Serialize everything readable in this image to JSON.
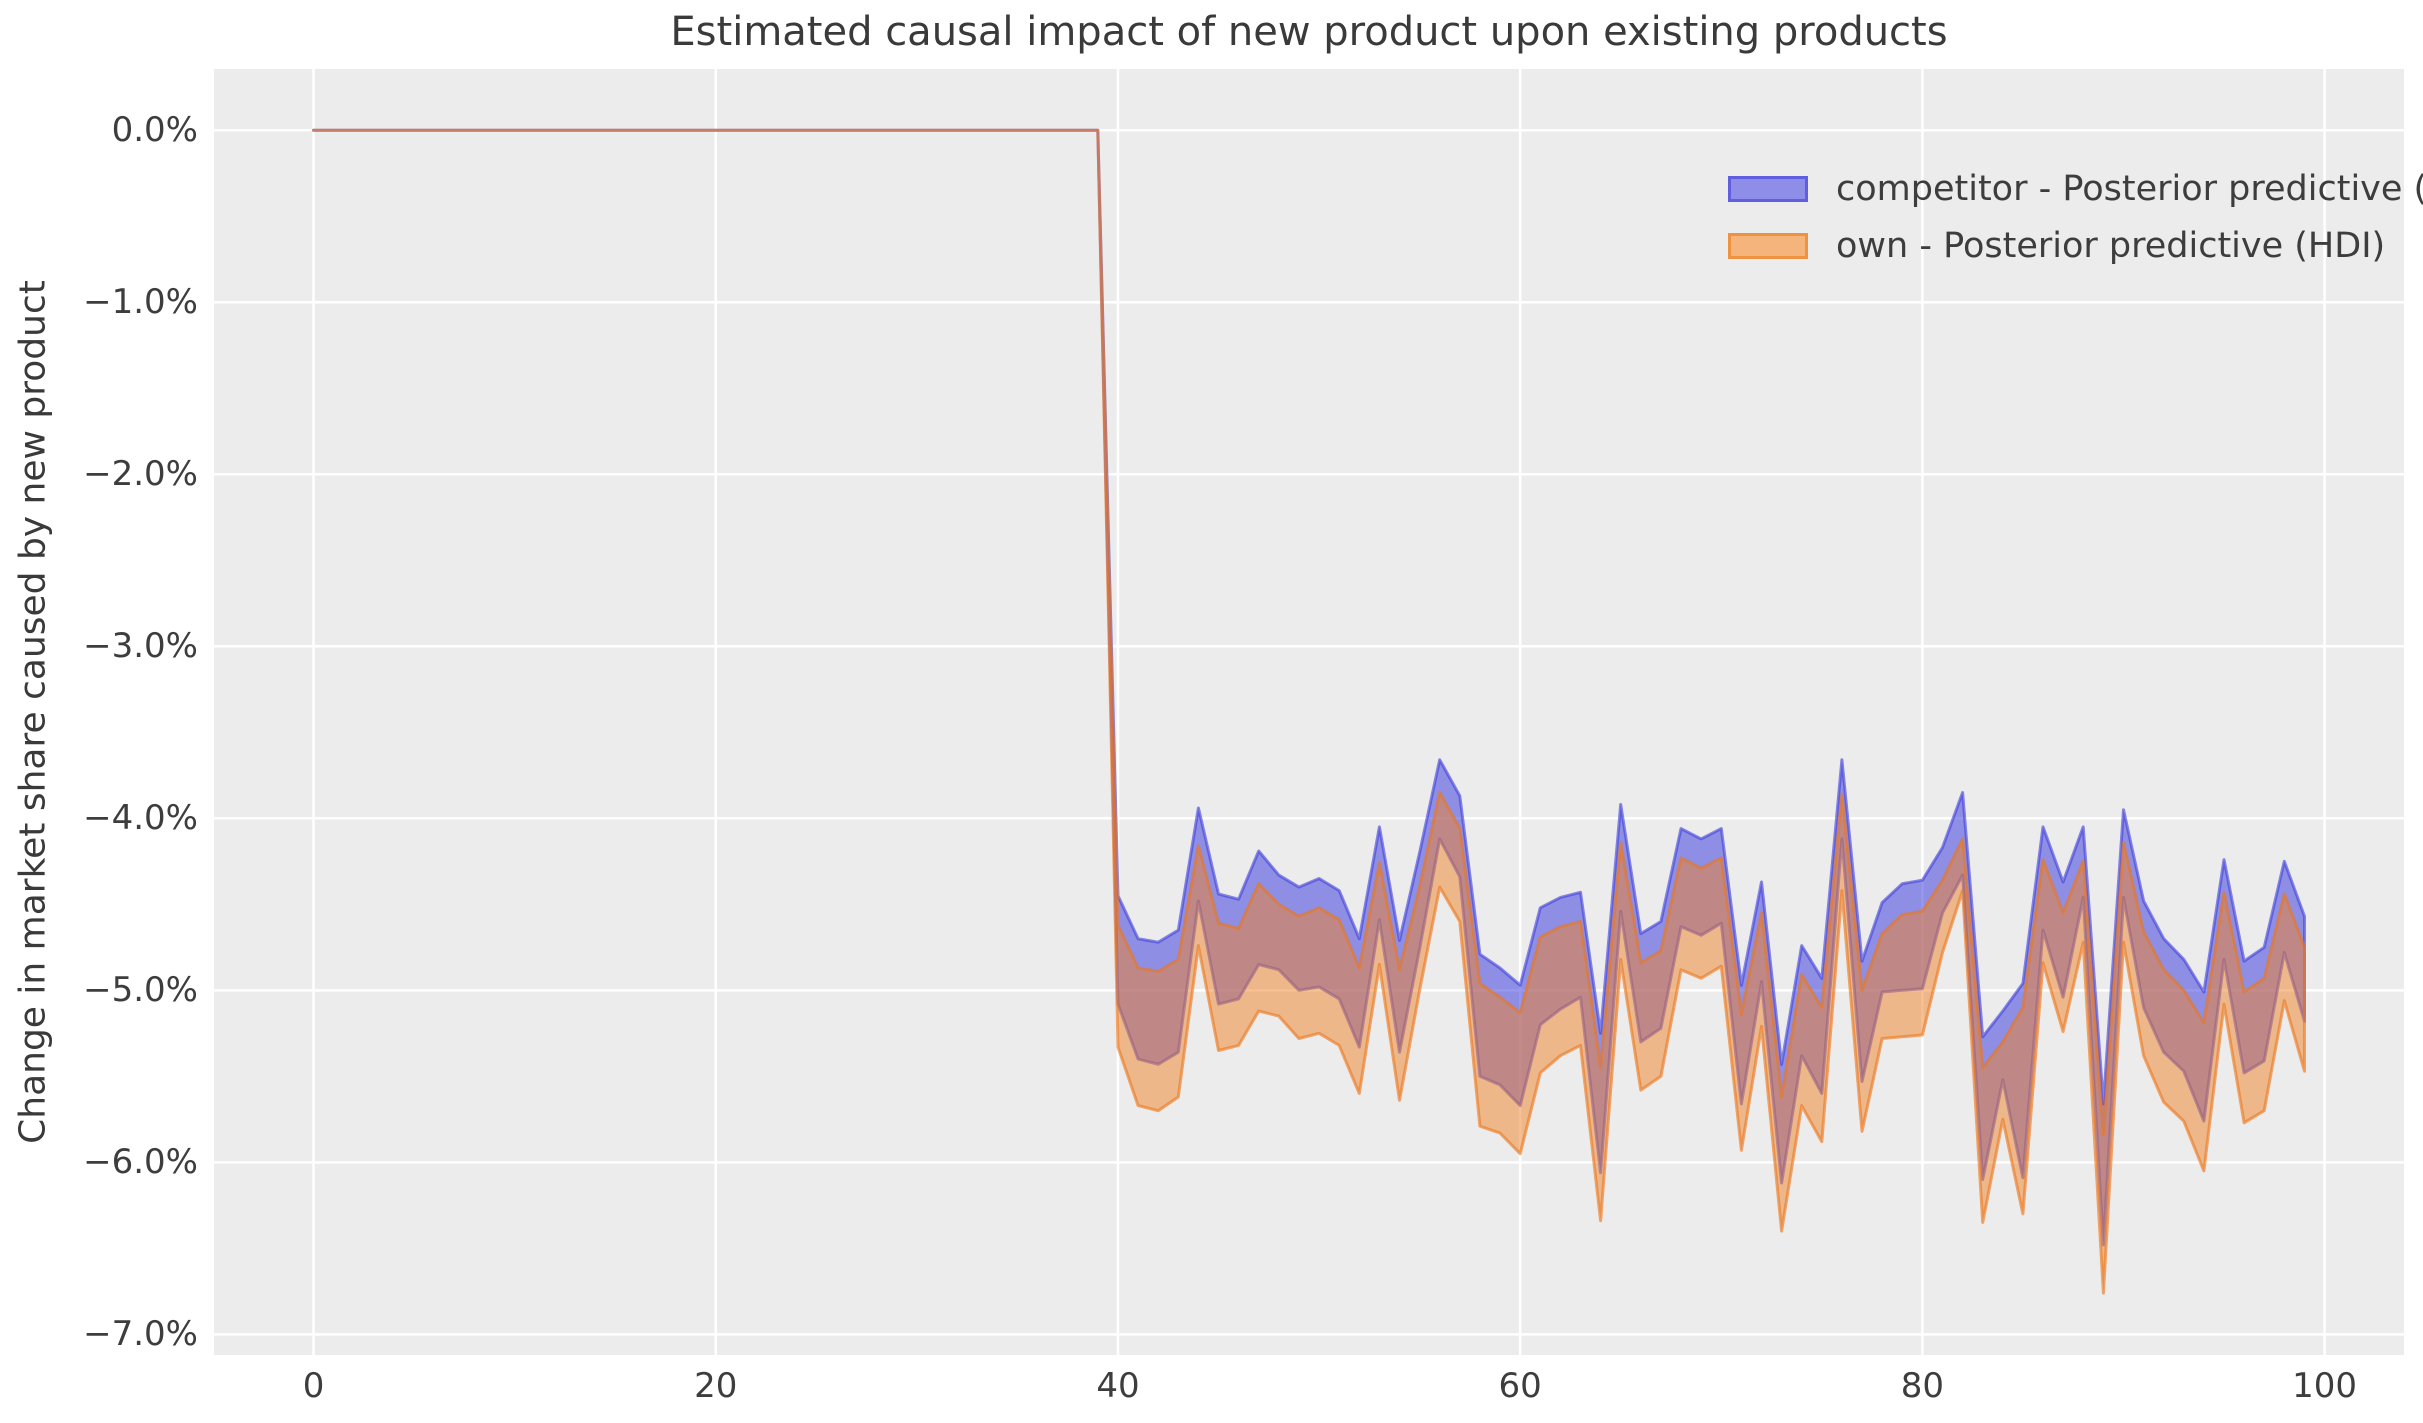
{
  "figure": {
    "title": "Estimated causal impact of new product upon existing products"
  },
  "axes": {
    "y_label": "Change in market share caused by new product",
    "x_ticks": [
      {
        "v": 0,
        "label": "0"
      },
      {
        "v": 20,
        "label": "20"
      },
      {
        "v": 40,
        "label": "40"
      },
      {
        "v": 60,
        "label": "60"
      },
      {
        "v": 80,
        "label": "80"
      },
      {
        "v": 100,
        "label": "100"
      }
    ],
    "y_ticks": [
      {
        "v": 0,
        "label": "0.0%"
      },
      {
        "v": -1,
        "label": "−1.0%"
      },
      {
        "v": -2,
        "label": "−2.0%"
      },
      {
        "v": -3,
        "label": "−3.0%"
      },
      {
        "v": -4,
        "label": "−4.0%"
      },
      {
        "v": -5,
        "label": "−5.0%"
      },
      {
        "v": -6,
        "label": "−6.0%"
      },
      {
        "v": -7,
        "label": "−7.0%"
      }
    ]
  },
  "legend": {
    "items": [
      {
        "label": "competitor - Posterior predictive (HDI)",
        "fill": "#8e8ee9",
        "border": "#5f5fe0"
      },
      {
        "label": "own - Posterior predictive (HDI)",
        "fill": "#f4b47b",
        "border": "#ee9140"
      }
    ]
  },
  "colors": {
    "page_bg": "#ffffff",
    "plot_bg": "#ececec",
    "grid": "#ffffff",
    "title_text": "#3a3a3a",
    "tick_text": "#3d3d3d",
    "pre_period_line_composite": "#c27f76",
    "overlap_composite": "#bc8584"
  },
  "chart_data": {
    "type": "area",
    "title": "Estimated causal impact of new product upon existing products",
    "xlabel": "",
    "ylabel": "Change in market share caused by new product",
    "xlim": [
      -4.95,
      103.95
    ],
    "ylim": [
      -7.12,
      0.356
    ],
    "x_tick_values": [
      0,
      20,
      40,
      60,
      80,
      100
    ],
    "y_tick_values": [
      0,
      -1,
      -2,
      -3,
      -4,
      -5,
      -6,
      -7
    ],
    "grid": true,
    "legend_position": "upper right",
    "units": "percent",
    "pre_period": {
      "x_start": 0,
      "x_end": 39,
      "value": 0
    },
    "x_post": [
      40,
      41,
      42,
      43,
      44,
      45,
      46,
      47,
      48,
      49,
      50,
      51,
      52,
      53,
      54,
      55,
      56,
      57,
      58,
      59,
      60,
      61,
      62,
      63,
      64,
      65,
      66,
      67,
      68,
      69,
      70,
      71,
      72,
      73,
      74,
      75,
      76,
      77,
      78,
      79,
      80,
      81,
      82,
      83,
      84,
      85,
      86,
      87,
      88,
      89,
      90,
      91,
      92,
      93,
      94,
      95,
      96,
      97,
      98,
      99
    ],
    "series": [
      {
        "name": "competitor - Posterior predictive (HDI)",
        "band": "HDI",
        "fill": "rgba(47,47,221,0.50)",
        "stroke": "rgba(64,64,220,0.62)",
        "hi": [
          -4.45,
          -4.7,
          -4.72,
          -4.65,
          -3.94,
          -4.44,
          -4.47,
          -4.19,
          -4.33,
          -4.4,
          -4.35,
          -4.42,
          -4.7,
          -4.05,
          -4.71,
          -4.2,
          -3.66,
          -3.87,
          -4.79,
          -4.87,
          -4.97,
          -4.52,
          -4.46,
          -4.43,
          -5.25,
          -3.92,
          -4.67,
          -4.6,
          -4.06,
          -4.12,
          -4.06,
          -4.97,
          -4.37,
          -5.43,
          -4.74,
          -4.93,
          -3.66,
          -4.83,
          -4.49,
          -4.38,
          -4.36,
          -4.17,
          -3.85,
          -5.27,
          -5.12,
          -4.96,
          -4.05,
          -4.37,
          -4.05,
          -5.66,
          -3.95,
          -4.48,
          -4.7,
          -4.82,
          -5.01,
          -4.24,
          -4.83,
          -4.75,
          -4.25,
          -4.57
        ],
        "lo": [
          -5.08,
          -5.4,
          -5.43,
          -5.36,
          -4.48,
          -5.08,
          -5.05,
          -4.85,
          -4.88,
          -5.0,
          -4.98,
          -5.05,
          -5.33,
          -4.59,
          -5.36,
          -4.76,
          -4.12,
          -4.34,
          -5.5,
          -5.55,
          -5.67,
          -5.2,
          -5.11,
          -5.04,
          -6.06,
          -4.54,
          -5.3,
          -5.22,
          -4.63,
          -4.68,
          -4.61,
          -5.66,
          -4.95,
          -6.12,
          -5.38,
          -5.6,
          -4.12,
          -5.53,
          -5.01,
          -5.0,
          -4.99,
          -4.55,
          -4.33,
          -6.1,
          -5.52,
          -6.09,
          -4.65,
          -5.04,
          -4.46,
          -6.48,
          -4.46,
          -5.1,
          -5.36,
          -5.47,
          -5.76,
          -4.82,
          -5.48,
          -5.41,
          -4.78,
          -5.18
        ]
      },
      {
        "name": "own - Posterior predictive (HDI)",
        "band": "HDI",
        "fill": "rgba(240,130,40,0.50)",
        "stroke": "rgba(236,118,28,0.62)",
        "hi": [
          -4.62,
          -4.87,
          -4.89,
          -4.82,
          -4.16,
          -4.61,
          -4.64,
          -4.38,
          -4.5,
          -4.57,
          -4.52,
          -4.59,
          -4.87,
          -4.26,
          -4.88,
          -4.4,
          -3.85,
          -4.06,
          -4.96,
          -5.04,
          -5.13,
          -4.69,
          -4.63,
          -4.6,
          -5.45,
          -4.14,
          -4.84,
          -4.77,
          -4.23,
          -4.29,
          -4.23,
          -5.14,
          -4.55,
          -5.62,
          -4.91,
          -5.1,
          -3.86,
          -5.0,
          -4.67,
          -4.56,
          -4.54,
          -4.36,
          -4.12,
          -5.45,
          -5.3,
          -5.1,
          -4.24,
          -4.55,
          -4.25,
          -5.84,
          -4.14,
          -4.66,
          -4.88,
          -5.0,
          -5.19,
          -4.43,
          -5.01,
          -4.93,
          -4.44,
          -4.75
        ],
        "lo": [
          -5.33,
          -5.67,
          -5.7,
          -5.62,
          -4.74,
          -5.35,
          -5.32,
          -5.12,
          -5.15,
          -5.28,
          -5.25,
          -5.32,
          -5.6,
          -4.85,
          -5.64,
          -5.0,
          -4.4,
          -4.6,
          -5.79,
          -5.83,
          -5.95,
          -5.48,
          -5.38,
          -5.32,
          -6.34,
          -4.82,
          -5.58,
          -5.5,
          -4.88,
          -4.93,
          -4.86,
          -5.93,
          -5.21,
          -6.4,
          -5.67,
          -5.88,
          -4.42,
          -5.82,
          -5.28,
          -5.27,
          -5.26,
          -4.78,
          -4.42,
          -6.35,
          -5.75,
          -6.3,
          -4.84,
          -5.24,
          -4.72,
          -6.76,
          -4.72,
          -5.38,
          -5.65,
          -5.76,
          -6.05,
          -5.08,
          -5.77,
          -5.7,
          -5.06,
          -5.47
        ]
      }
    ]
  }
}
